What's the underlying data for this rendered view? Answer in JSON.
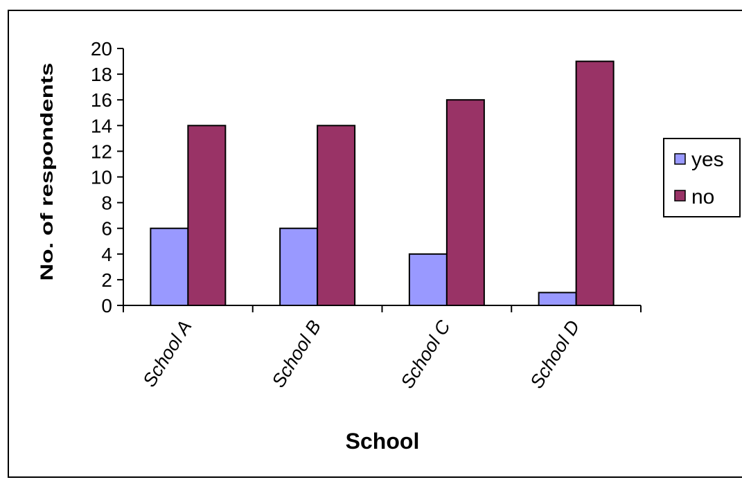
{
  "chart_data": {
    "type": "bar",
    "title": "",
    "xlabel": "School",
    "ylabel": "No. of respondents",
    "categories": [
      "School A",
      "School B",
      "School C",
      "School D"
    ],
    "series": [
      {
        "name": "yes",
        "values": [
          6,
          6,
          4,
          1
        ]
      },
      {
        "name": "no",
        "values": [
          14,
          14,
          16,
          19
        ]
      }
    ],
    "ylim": [
      0,
      20
    ],
    "yticks": [
      0,
      2,
      4,
      6,
      8,
      10,
      12,
      14,
      16,
      18,
      20
    ],
    "grid": false,
    "legend_position": "right",
    "colors": {
      "yes": "#9999ff",
      "no": "#993366"
    }
  }
}
